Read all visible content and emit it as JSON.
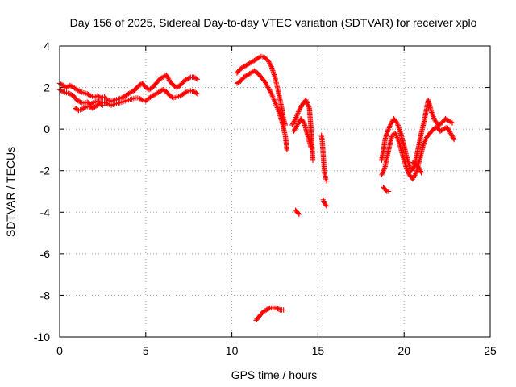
{
  "chart_data": {
    "type": "scatter",
    "title": "Day 156 of 2025, Sidereal Day-to-day VTEC variation (SDTVAR) for receiver xplo",
    "xlabel": "GPS time / hours",
    "ylabel": "SDTVAR / TECUs",
    "xlim": [
      0,
      25
    ],
    "ylim": [
      -10,
      4
    ],
    "xticks": [
      0,
      5,
      10,
      15,
      20,
      25
    ],
    "yticks": [
      -10,
      -8,
      -6,
      -4,
      -2,
      0,
      2,
      4
    ],
    "grid": true,
    "marker": "+",
    "color": "#ff0000",
    "series": [
      {
        "name": "SDTVAR",
        "traces": [
          {
            "x": [
              0.0,
              0.2,
              0.4,
              0.6,
              0.8,
              1.0,
              1.2,
              1.4,
              1.6,
              1.8,
              2.0,
              2.2,
              2.4,
              2.6,
              2.8,
              3.0,
              3.2,
              3.4,
              3.6,
              3.8,
              4.0,
              4.2,
              4.4,
              4.6,
              4.8,
              5.0,
              5.2,
              5.4,
              5.6,
              5.8,
              6.0,
              6.2,
              6.4,
              6.6,
              6.8,
              7.0,
              7.2,
              7.4,
              7.6,
              7.8,
              8.0
            ],
            "y": [
              2.2,
              2.1,
              2.0,
              2.1,
              2.0,
              1.9,
              1.8,
              1.75,
              1.7,
              1.6,
              1.55,
              1.6,
              1.5,
              1.55,
              1.4,
              1.35,
              1.4,
              1.45,
              1.5,
              1.6,
              1.7,
              1.8,
              1.9,
              2.1,
              2.2,
              2.0,
              1.9,
              2.0,
              2.2,
              2.4,
              2.5,
              2.6,
              2.3,
              2.1,
              2.0,
              2.1,
              2.3,
              2.4,
              2.5,
              2.5,
              2.4
            ]
          },
          {
            "x": [
              0.0,
              0.2,
              0.4,
              0.6,
              0.8,
              1.0,
              1.2,
              1.4,
              1.6,
              1.8,
              2.0,
              2.2,
              2.4,
              2.6,
              2.8,
              3.0,
              3.2,
              3.4,
              3.6,
              3.8,
              4.0,
              4.2,
              4.4,
              4.6,
              4.8,
              5.0,
              5.2,
              5.4,
              5.6,
              5.8,
              6.0,
              6.2,
              6.4,
              6.6,
              6.8,
              7.0,
              7.2,
              7.4,
              7.6,
              7.8,
              8.0
            ],
            "y": [
              1.9,
              1.8,
              1.75,
              1.7,
              1.6,
              1.4,
              1.3,
              1.25,
              1.3,
              1.2,
              1.3,
              1.35,
              1.25,
              1.3,
              1.2,
              1.15,
              1.2,
              1.25,
              1.3,
              1.35,
              1.4,
              1.45,
              1.5,
              1.5,
              1.4,
              1.35,
              1.5,
              1.6,
              1.7,
              1.8,
              1.9,
              1.8,
              1.6,
              1.5,
              1.55,
              1.6,
              1.7,
              1.8,
              1.85,
              1.8,
              1.7
            ]
          },
          {
            "x": [
              0.9,
              1.1,
              1.3,
              1.5,
              1.7,
              1.9,
              2.1,
              2.3,
              2.5
            ],
            "y": [
              1.0,
              0.9,
              0.95,
              1.05,
              1.1,
              1.0,
              1.1,
              1.2,
              1.15
            ]
          },
          {
            "x": [
              10.3,
              10.5,
              10.7,
              10.9,
              11.1,
              11.3,
              11.5,
              11.7,
              11.9,
              12.1,
              12.3,
              12.5,
              12.7,
              12.9,
              13.0,
              13.1
            ],
            "y": [
              2.7,
              2.9,
              3.0,
              3.1,
              3.2,
              3.3,
              3.4,
              3.5,
              3.45,
              3.3,
              3.0,
              2.5,
              1.8,
              1.0,
              0.5,
              0.2
            ]
          },
          {
            "x": [
              10.3,
              10.5,
              10.7,
              10.9,
              11.1,
              11.3,
              11.5,
              11.7,
              11.9,
              12.1,
              12.3,
              12.5,
              12.7,
              12.9,
              13.1,
              13.2
            ],
            "y": [
              2.2,
              2.3,
              2.5,
              2.6,
              2.7,
              2.8,
              2.7,
              2.5,
              2.3,
              2.0,
              1.7,
              1.3,
              0.9,
              0.4,
              -0.3,
              -1.0
            ]
          },
          {
            "x": [
              13.7,
              13.8,
              13.9
            ],
            "y": [
              -3.9,
              -4.0,
              -4.1
            ]
          },
          {
            "x": [
              13.5,
              13.7,
              13.9,
              14.1,
              14.3,
              14.5,
              14.6,
              14.7
            ],
            "y": [
              0.2,
              0.5,
              0.9,
              1.2,
              1.4,
              1.0,
              0.0,
              -1.5
            ]
          },
          {
            "x": [
              13.6,
              13.8,
              14.0,
              14.2,
              14.4,
              14.6
            ],
            "y": [
              -0.1,
              0.2,
              0.5,
              0.3,
              -0.3,
              -0.9
            ]
          },
          {
            "x": [
              15.2,
              15.25,
              15.3,
              15.35,
              15.4,
              15.45,
              15.5
            ],
            "y": [
              -0.3,
              -0.6,
              -1.2,
              -1.8,
              -2.2,
              -2.4,
              -2.5
            ]
          },
          {
            "x": [
              15.3,
              15.4,
              15.5
            ],
            "y": [
              -3.4,
              -3.6,
              -3.7
            ]
          },
          {
            "x": [
              11.4,
              11.6,
              11.8,
              12.0,
              12.2,
              12.4,
              12.6,
              12.8,
              13.0
            ],
            "y": [
              -9.2,
              -9.0,
              -8.8,
              -8.7,
              -8.6,
              -8.6,
              -8.6,
              -8.7,
              -8.7
            ]
          },
          {
            "x": [
              18.7,
              18.8,
              18.9,
              19.0,
              19.2,
              19.4,
              19.6,
              19.8,
              20.0,
              20.2,
              20.4,
              20.6,
              20.8,
              21.0,
              21.2,
              21.4,
              21.6,
              21.8,
              22.0,
              22.2,
              22.4,
              22.6,
              22.8
            ],
            "y": [
              -1.5,
              -1.0,
              -0.5,
              -0.2,
              0.2,
              0.5,
              0.3,
              -0.2,
              -0.8,
              -1.5,
              -2.0,
              -1.8,
              -1.0,
              -0.2,
              0.5,
              1.4,
              0.8,
              0.4,
              0.2,
              0.3,
              0.5,
              0.4,
              0.3
            ]
          },
          {
            "x": [
              18.7,
              18.9,
              19.1,
              19.3,
              19.5,
              19.7,
              19.9,
              20.1,
              20.3,
              20.5,
              20.7,
              20.9,
              21.1,
              21.3,
              21.5,
              21.7,
              21.9,
              22.1,
              22.3,
              22.5,
              22.7,
              22.9
            ],
            "y": [
              -2.2,
              -1.8,
              -1.0,
              -0.3,
              -0.2,
              -0.6,
              -1.2,
              -1.8,
              -2.2,
              -2.4,
              -2.1,
              -1.5,
              -0.8,
              -0.4,
              -0.2,
              0.0,
              0.1,
              -0.1,
              0.0,
              0.1,
              -0.2,
              -0.5
            ]
          },
          {
            "x": [
              18.8,
              18.9,
              19.0,
              19.1
            ],
            "y": [
              -2.8,
              -2.9,
              -3.0,
              -3.0
            ]
          },
          {
            "x": [
              20.5,
              20.7,
              20.9,
              21.0
            ],
            "y": [
              -1.6,
              -1.7,
              -1.9,
              -2.1
            ]
          }
        ]
      }
    ]
  }
}
